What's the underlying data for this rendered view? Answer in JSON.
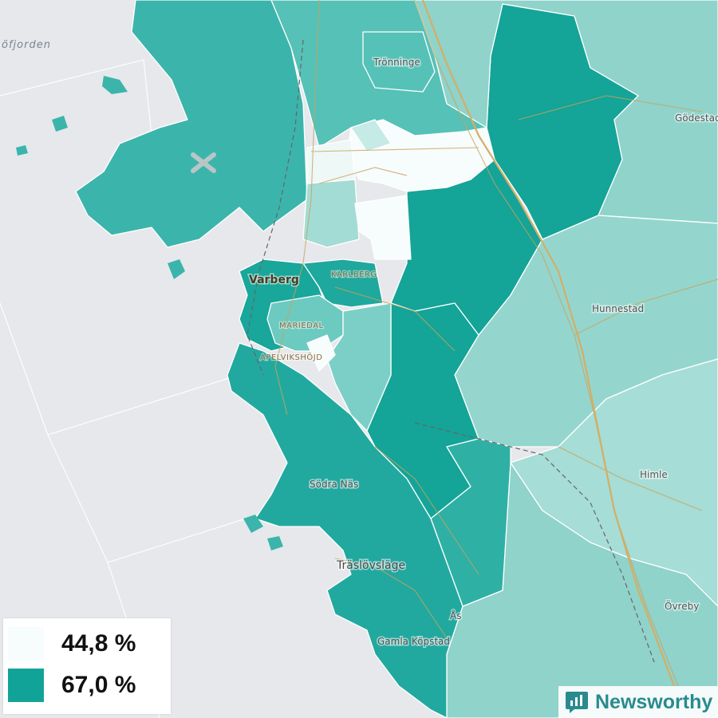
{
  "colors": {
    "water": "#e6e8ec",
    "low": "#f7fcfc",
    "high": "#12a398",
    "roads": "#c9a35a",
    "railway": "#666666",
    "brand": "#2a8a8e"
  },
  "map": {
    "water_label": "öfjorden",
    "places": [
      {
        "id": "tronninge",
        "name": "Trönninge"
      },
      {
        "id": "godestad",
        "name": "Gödestad"
      },
      {
        "id": "varberg",
        "name": "Varberg"
      },
      {
        "id": "karlberg",
        "name": "KARLBERG"
      },
      {
        "id": "mariedal",
        "name": "MARIEDAL"
      },
      {
        "id": "apelvikshojd",
        "name": "APELVIKSHÖJD"
      },
      {
        "id": "hunnestad",
        "name": "Hunnestad"
      },
      {
        "id": "himle",
        "name": "Himle"
      },
      {
        "id": "sodra-nas",
        "name": "Södra Näs"
      },
      {
        "id": "traslovslage",
        "name": "Träslövsläge"
      },
      {
        "id": "ovreby",
        "name": "Övreby"
      },
      {
        "id": "as",
        "name": "Ås"
      },
      {
        "id": "gamla-kopstad",
        "name": "Gamla Köpstad"
      }
    ]
  },
  "legend": {
    "items": [
      {
        "label": "44,8 %",
        "color": "#f7fcfc"
      },
      {
        "label": "67,0 %",
        "color": "#12a398"
      }
    ]
  },
  "brand": {
    "name": "Newsworthy",
    "icon": "bar-chart-icon"
  }
}
